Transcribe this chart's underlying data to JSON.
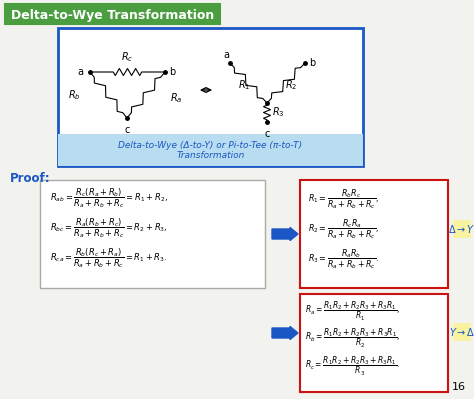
{
  "bg_color": "#f2f2ee",
  "title": "Delta-to-Wye Transformation",
  "title_bg": "#4a9e3f",
  "title_color": "white",
  "proof_label": "Proof:",
  "proof_color": "#1a56c4",
  "slide_number": "16",
  "diagram_caption_line1": "Delta-to-Wye (Δ-to-Y) or Pi-to-Tee (π-to-T)",
  "diagram_caption_line2": "Transformation",
  "arrow_color": "#1a56c4",
  "diag_border": "#1a56c4",
  "red_border": "#cc1111",
  "gray_border": "#aaaaaa",
  "yellow_bg": "#f7f3a0",
  "caption_bg": "#b8ddf0"
}
